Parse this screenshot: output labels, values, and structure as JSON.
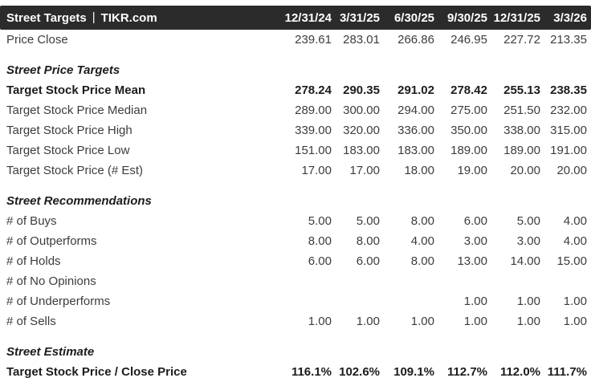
{
  "header": {
    "title_left": "Street Targets",
    "separator": "|",
    "title_right": "TIKR.com",
    "columns": [
      "12/31/24",
      "3/31/25",
      "6/30/25",
      "9/30/25",
      "12/31/25",
      "3/3/26"
    ]
  },
  "colors": {
    "header_bg": "#2b2b2b",
    "header_text": "#ffffff",
    "row_text": "#3c3c3c",
    "bold_text": "#1c1c1c"
  },
  "rows": [
    {
      "type": "row",
      "bold": false,
      "label": "Price Close",
      "values": [
        "239.61",
        "283.01",
        "266.86",
        "246.95",
        "227.72",
        "213.35"
      ]
    },
    {
      "type": "section",
      "label": "Street Price Targets"
    },
    {
      "type": "row",
      "bold": true,
      "label": "Target Stock Price Mean",
      "values": [
        "278.24",
        "290.35",
        "291.02",
        "278.42",
        "255.13",
        "238.35"
      ]
    },
    {
      "type": "row",
      "bold": false,
      "label": "Target Stock Price Median",
      "values": [
        "289.00",
        "300.00",
        "294.00",
        "275.00",
        "251.50",
        "232.00"
      ]
    },
    {
      "type": "row",
      "bold": false,
      "label": "Target Stock Price High",
      "values": [
        "339.00",
        "320.00",
        "336.00",
        "350.00",
        "338.00",
        "315.00"
      ]
    },
    {
      "type": "row",
      "bold": false,
      "label": "Target Stock Price Low",
      "values": [
        "151.00",
        "183.00",
        "183.00",
        "189.00",
        "189.00",
        "191.00"
      ]
    },
    {
      "type": "row",
      "bold": false,
      "label": "Target Stock Price (# Est)",
      "values": [
        "17.00",
        "17.00",
        "18.00",
        "19.00",
        "20.00",
        "20.00"
      ]
    },
    {
      "type": "section",
      "label": "Street Recommendations"
    },
    {
      "type": "row",
      "bold": false,
      "label": "# of Buys",
      "values": [
        "5.00",
        "5.00",
        "8.00",
        "6.00",
        "5.00",
        "4.00"
      ]
    },
    {
      "type": "row",
      "bold": false,
      "label": "# of Outperforms",
      "values": [
        "8.00",
        "8.00",
        "4.00",
        "3.00",
        "3.00",
        "4.00"
      ]
    },
    {
      "type": "row",
      "bold": false,
      "label": "# of Holds",
      "values": [
        "6.00",
        "6.00",
        "8.00",
        "13.00",
        "14.00",
        "15.00"
      ]
    },
    {
      "type": "row",
      "bold": false,
      "label": "# of No Opinions",
      "values": [
        "",
        "",
        "",
        "",
        "",
        ""
      ]
    },
    {
      "type": "row",
      "bold": false,
      "label": "# of Underperforms",
      "values": [
        "",
        "",
        "",
        "1.00",
        "1.00",
        "1.00"
      ]
    },
    {
      "type": "row",
      "bold": false,
      "label": "# of Sells",
      "values": [
        "1.00",
        "1.00",
        "1.00",
        "1.00",
        "1.00",
        "1.00"
      ]
    },
    {
      "type": "section",
      "label": "Street Estimate"
    },
    {
      "type": "row",
      "bold": true,
      "label": "Target Stock Price / Close Price",
      "values": [
        "116.1%",
        "102.6%",
        "109.1%",
        "112.7%",
        "112.0%",
        "111.7%"
      ]
    }
  ]
}
